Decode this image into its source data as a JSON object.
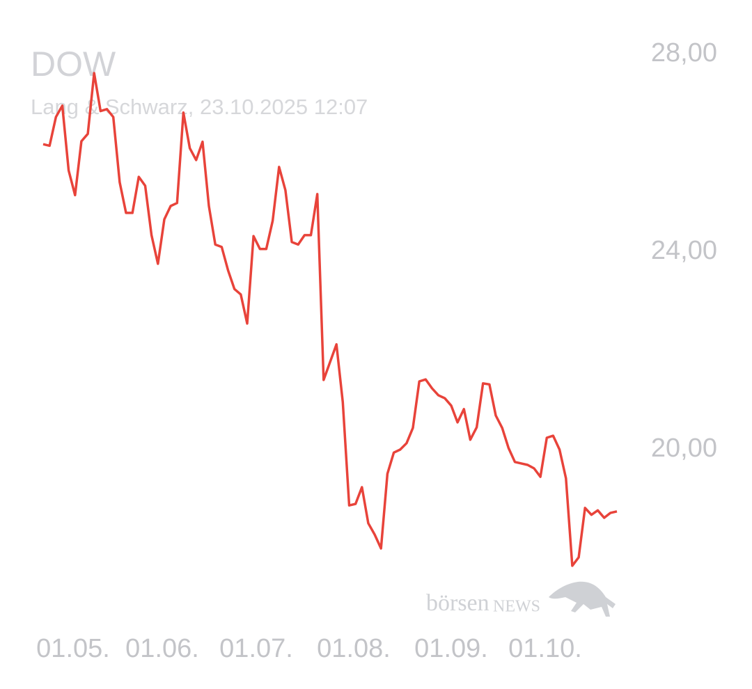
{
  "chart_data": {
    "type": "line",
    "title": "DOW",
    "subtitle": "Lang & Schwarz, 23.10.2025 12:07",
    "watermark": [
      "börsen",
      "NEWS"
    ],
    "x_labels": [
      "01.05.",
      "01.06.",
      "01.07.",
      "01.08.",
      "01.09.",
      "01.10."
    ],
    "series": [
      {
        "color": "#e8433a",
        "values": [
          26.18,
          26.15,
          26.73,
          26.96,
          25.65,
          25.15,
          26.24,
          26.39,
          27.62,
          26.85,
          26.89,
          26.73,
          25.41,
          24.79,
          24.79,
          25.52,
          25.34,
          24.34,
          23.76,
          24.66,
          24.93,
          24.99,
          26.82,
          26.1,
          25.86,
          26.23,
          24.93,
          24.15,
          24.1,
          23.63,
          23.25,
          23.14,
          22.55,
          24.32,
          24.06,
          24.06,
          24.63,
          25.72,
          25.25,
          24.2,
          24.15,
          24.34,
          24.34,
          25.17,
          21.41,
          21.77,
          22.13,
          20.96,
          18.87,
          18.9,
          19.24,
          18.51,
          18.28,
          18.0,
          19.51,
          19.94,
          20.0,
          20.13,
          20.44,
          21.38,
          21.42,
          21.24,
          21.1,
          21.04,
          20.89,
          20.55,
          20.82,
          20.2,
          20.45,
          21.34,
          21.32,
          20.69,
          20.44,
          20.03,
          19.75,
          19.72,
          19.69,
          19.62,
          19.45,
          20.24,
          20.28,
          20.0,
          19.42,
          17.65,
          17.82,
          18.82,
          18.68,
          18.77,
          18.62,
          18.72,
          18.75
        ]
      }
    ],
    "ylim": [
      17,
      28.5
    ],
    "yticks": [
      {
        "value": 20,
        "label": "20,00"
      },
      {
        "value": 24,
        "label": "24,00"
      },
      {
        "value": 28,
        "label": "28,00"
      }
    ]
  }
}
